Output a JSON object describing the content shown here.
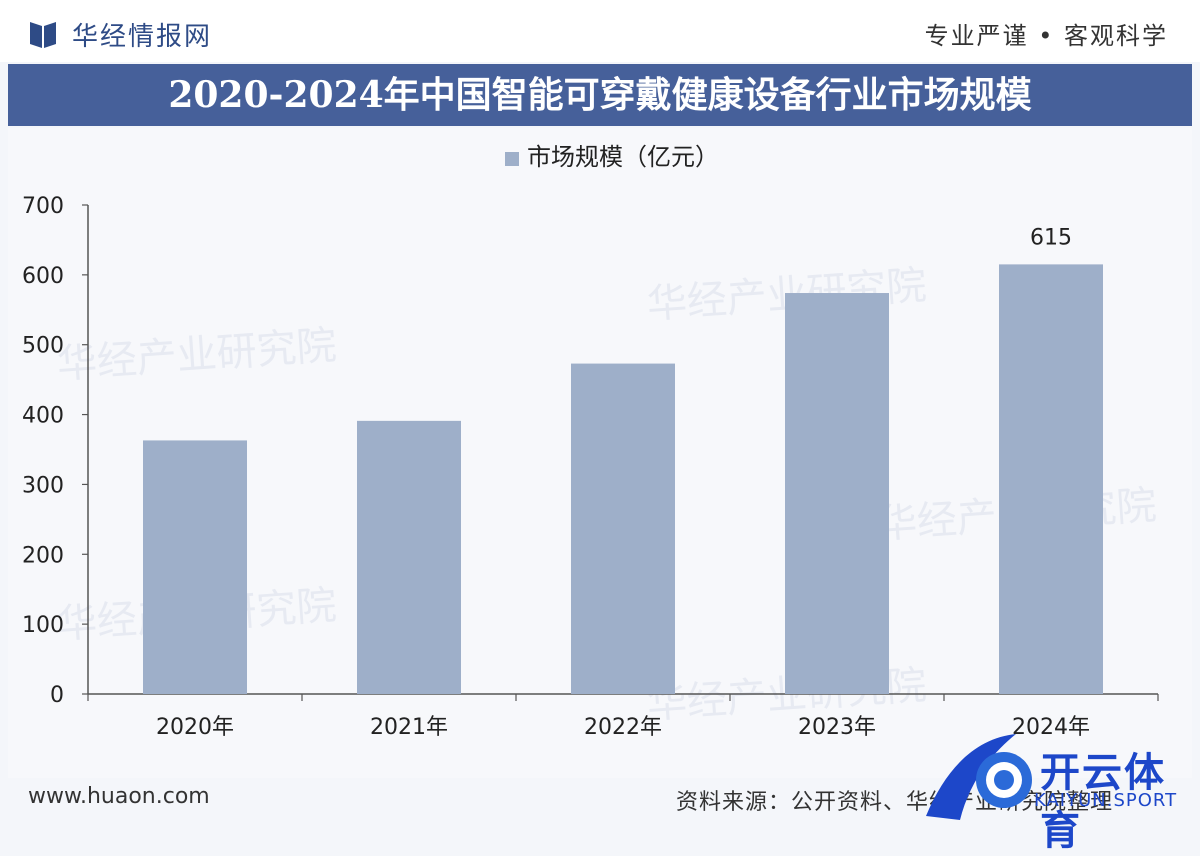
{
  "header": {
    "brand": "华经情报网",
    "slogan": "专业严谨 • 客观科学"
  },
  "chart_data": {
    "type": "bar",
    "title": "2020-2024年中国智能可穿戴健康设备行业市场规模",
    "categories": [
      "2020年",
      "2021年",
      "2022年",
      "2023年",
      "2024年"
    ],
    "series": [
      {
        "name": "市场规模（亿元）",
        "values": [
          363,
          391,
          473,
          574,
          615
        ]
      }
    ],
    "data_labels": [
      "",
      "",
      "",
      "",
      "615"
    ],
    "ylim": [
      0,
      700
    ],
    "yticks": [
      0,
      100,
      200,
      300,
      400,
      500,
      600,
      700
    ],
    "legend": "top-center",
    "grid": false,
    "colors": {
      "bar": "#9eafc9",
      "axis": "#555555"
    }
  },
  "watermark": "华经产业研究院",
  "footer": {
    "url": "www.huaon.com",
    "source": "资料来源：公开资料、华经产业研究院整理"
  },
  "badge": {
    "text": "开云体育",
    "sub": "KAIYUN.SPORT"
  }
}
